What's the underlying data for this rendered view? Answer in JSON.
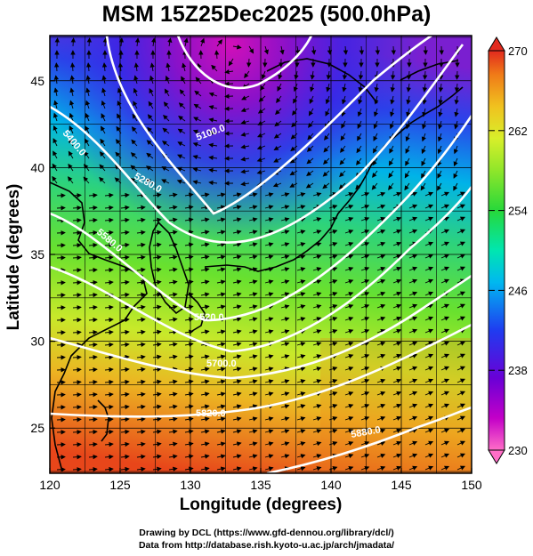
{
  "title": "MSM 15Z25Dec2025 (500.0hPa)",
  "axes": {
    "xlabel": "Longitude (degrees)",
    "ylabel": "Latitude  (degrees)",
    "xticks": [
      "120",
      "125",
      "130",
      "135",
      "140",
      "145",
      "150"
    ],
    "yticks": [
      "25",
      "30",
      "35",
      "40",
      "45"
    ],
    "xrange": [
      120,
      150
    ],
    "yrange": [
      22.4,
      47.6
    ]
  },
  "colorbar": {
    "ticks": [
      "270",
      "262",
      "254",
      "246",
      "238",
      "230"
    ],
    "range": [
      230,
      270
    ],
    "colors": [
      "#ff6ec7",
      "#c300c8",
      "#6a00d6",
      "#1f3cf0",
      "#00b8f0",
      "#00e6b0",
      "#27d83a",
      "#8fe62a",
      "#d8ef2a",
      "#f0c21f",
      "#f07b18",
      "#e22a1e"
    ]
  },
  "contours": {
    "values": [
      5100,
      5280,
      5400,
      5520,
      5580,
      5700,
      5820,
      5880
    ],
    "labels": [
      "5100.0",
      "5280.0",
      "5400.0",
      "5520.0",
      "5580.0",
      "5700.0",
      "5820.0",
      "5880.0"
    ]
  },
  "credits": {
    "line1": "Drawing by DCL (https://www.gfd-dennou.org/library/dcl/)",
    "line2": "Data from http://database.rish.kyoto-u.ac.jp/arch/jmadata/"
  }
}
